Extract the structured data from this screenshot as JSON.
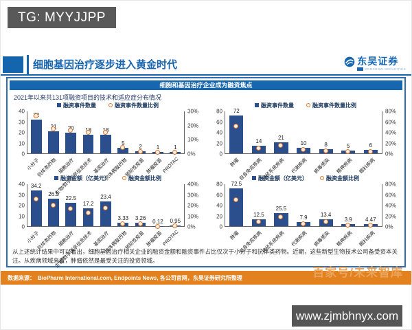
{
  "overlay": {
    "tg": "TG: MYYJJPP",
    "url": "www.zjmbhnyx.com"
  },
  "header": {
    "title": "细胞基因治疗逐步进入黄金时代",
    "logo_name": "东吴证券",
    "logo_sub": "SOOCHOW SECURITIES"
  },
  "banner": {
    "text": "细胞和基因治疗企业成为融资焦点"
  },
  "main": {
    "subtitle": "2021年以来共131项融资项目的技术和适应症分布情况",
    "note": "从上述统计结果中可以看出，细胞基因治疗相关企业的融资金额和融资事件占比仅次于小分子和抗体类药物。近期，这些新型生物技术公司备受资本关注。从疾病领域来看，肿瘤依然是最受关注的投资领域。"
  },
  "footer": {
    "source_label": "数据来源：",
    "source": "BioPharm International.com, Endpoints News, 各公司官网，东吴证券研究所整理",
    "watermark": "百家号/未来智库"
  },
  "colors": {
    "bar": "#2B4F8C",
    "marker": "#D9772F",
    "accent_blue": "#1565AE",
    "banner_blue": "#1667AF",
    "border_blue": "#2E6DB4",
    "source_orange": "#E2811E"
  },
  "chart_data": [
    {
      "id": "funding-events-by-technology",
      "type": "bar",
      "legend": [
        "融资事件数量",
        "融资事件数量比例"
      ],
      "categories": [
        "小分子",
        "抗体类药物",
        "细胞治疗",
        "生物/数字医学信息技术",
        "基因治疗",
        "抗体偶联药物",
        "预防性疫苗",
        "肿瘤疫苗",
        "PROTAC"
      ],
      "values": [
        32,
        21,
        20,
        18,
        18,
        5,
        2,
        1,
        1
      ],
      "left_ticks": [
        "40",
        "30",
        "20",
        "10",
        "0"
      ],
      "right_ticks": [
        "30%",
        "20%",
        "10%",
        "0%"
      ],
      "left_max": 40,
      "right_max": 30,
      "grid": false,
      "legend_position": "top"
    },
    {
      "id": "funding-events-by-disease",
      "type": "bar",
      "legend": [
        "融资事件数量",
        "融资事件数量比例"
      ],
      "categories": [
        "肿瘤",
        "自身免疫疾病",
        "神经系统疾病",
        "代谢疾病",
        "病毒感染",
        "精神疾病",
        "眼科疾病"
      ],
      "values": [
        72,
        14,
        21,
        10,
        8,
        5,
        6
      ],
      "left_ticks": [
        "80",
        "60",
        "40",
        "20",
        "0"
      ],
      "right_ticks": [
        "80%",
        "60%",
        "40%",
        "20%",
        "0%"
      ],
      "left_max": 80,
      "right_max": 80,
      "grid": false,
      "legend_position": "top"
    },
    {
      "id": "funding-amount-by-technology",
      "type": "bar",
      "legend": [
        "融资金额（亿美元）",
        "融资金额比例"
      ],
      "categories": [
        "小分子",
        "抗体类药物",
        "细胞治疗",
        "生物/数字医学信息技术",
        "基因治疗",
        "抗体偶联药物",
        "预防性疫苗",
        "肿瘤疫苗",
        "PROTAC"
      ],
      "values": [
        34.2,
        26.5,
        22.5,
        17.2,
        23.4,
        3.33,
        3.26,
        0.12,
        0.95
      ],
      "left_ticks": [
        "40",
        "30",
        "20",
        "10",
        "0"
      ],
      "right_ticks": [
        "40%",
        "30%",
        "20%",
        "10%",
        "0%"
      ],
      "left_max": 40,
      "right_max": 40,
      "grid": false,
      "legend_position": "top"
    },
    {
      "id": "funding-amount-by-disease",
      "type": "bar",
      "legend": [
        "融资金额（亿美元）",
        "融资金额比例"
      ],
      "categories": [
        "肿瘤",
        "自身免疫疾病",
        "神经系统疾病",
        "代谢疾病",
        "病毒感染",
        "精神疾病",
        "眼科疾病"
      ],
      "values": [
        72.5,
        12.5,
        25.5,
        7.9,
        13.4,
        3.9,
        4.47
      ],
      "left_ticks": [
        "80",
        "60",
        "40",
        "20",
        "0"
      ],
      "right_ticks": [
        "80%",
        "60%",
        "40%",
        "20%",
        "0%"
      ],
      "left_max": 80,
      "right_max": 80,
      "grid": false,
      "legend_position": "top"
    }
  ]
}
